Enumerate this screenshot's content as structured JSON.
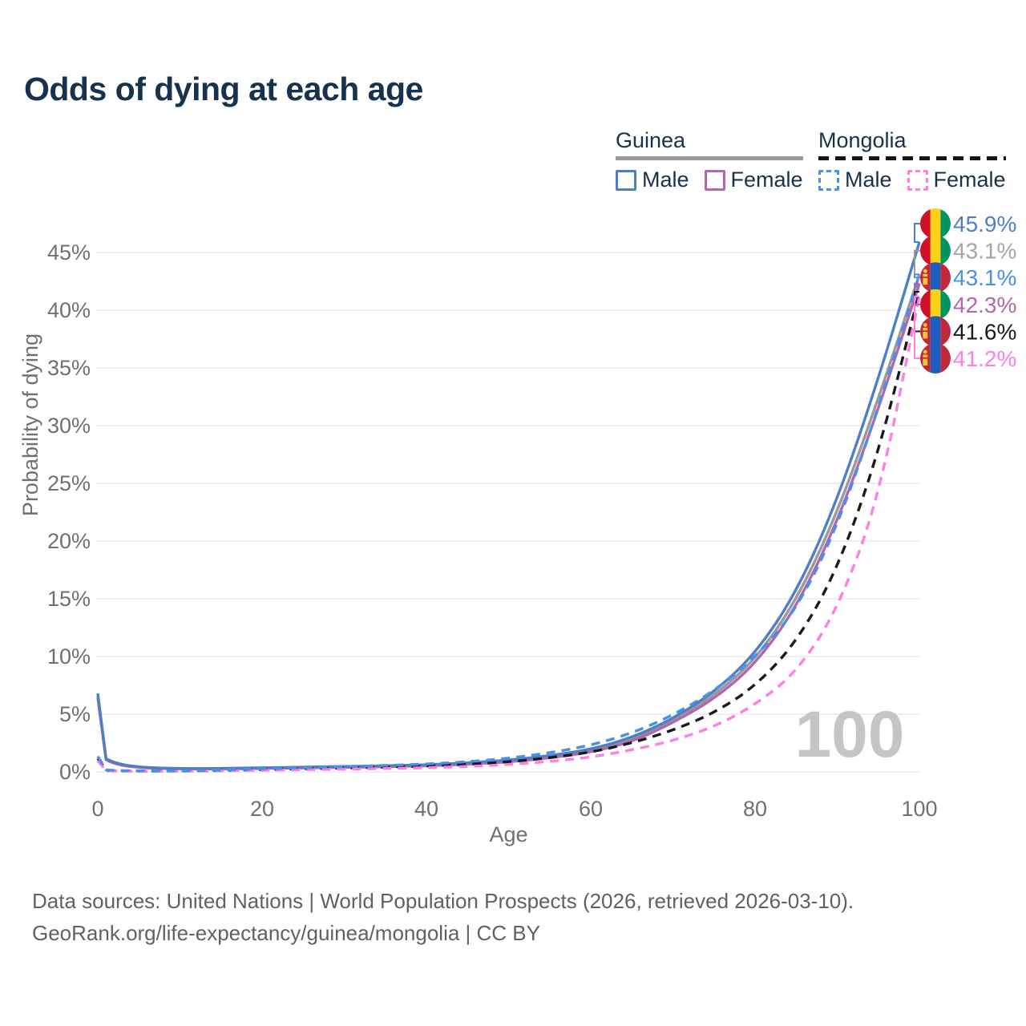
{
  "title": "Odds of dying at each age",
  "watermark": "100",
  "legend": {
    "groups": [
      {
        "name": "Guinea",
        "underline_style": "solid",
        "underline_color": "#9a9a9a",
        "items": [
          {
            "label": "Male",
            "color": "#4e7fc4"
          },
          {
            "label": "Female",
            "color": "#b565ae"
          }
        ]
      },
      {
        "name": "Mongolia",
        "underline_style": "dashed",
        "underline_color": "#141414",
        "items": [
          {
            "label": "Male",
            "color": "#4a8fe8"
          },
          {
            "label": "Female",
            "color": "#ff7ee3"
          }
        ]
      }
    ]
  },
  "colors": {
    "title_text": "#16324e",
    "axis_text": "#707070",
    "grid": "#eaeaea",
    "watermark": "#c5c5c5",
    "footer_text": "#616161",
    "guinea_flag": {
      "red": "#ce1126",
      "yellow": "#fcd116",
      "green": "#009460"
    },
    "mongolia_flag": {
      "red": "#c0283c",
      "blue": "#1c5dbe",
      "soyombo_yellow": "#f2c438"
    }
  },
  "chart_data": {
    "type": "line",
    "title": "Odds of dying at each age",
    "xlabel": "Age",
    "ylabel": "Probability of dying",
    "xlim": [
      0,
      100
    ],
    "ylim": [
      0,
      47.5
    ],
    "x_ticks": [
      0,
      20,
      40,
      60,
      80,
      100
    ],
    "y_ticks": [
      0,
      5,
      10,
      15,
      20,
      25,
      30,
      35,
      40,
      45
    ],
    "y_tick_suffix": "%",
    "grid": true,
    "legend_position": "top-right",
    "hovered_age_watermark": "100",
    "x": [
      0,
      1,
      2,
      5,
      10,
      15,
      20,
      25,
      30,
      35,
      40,
      45,
      50,
      55,
      60,
      65,
      70,
      75,
      80,
      85,
      90,
      95,
      100
    ],
    "series": [
      {
        "name": "Guinea Male",
        "country": "Guinea",
        "sex": "male",
        "color": "#4e7fc4",
        "line_style": "solid",
        "flag": "guinea",
        "end_label": "45.9%",
        "end_label_color": "#4e7fc4",
        "values": [
          6.8,
          1.15,
          0.75,
          0.4,
          0.28,
          0.3,
          0.36,
          0.42,
          0.47,
          0.53,
          0.62,
          0.78,
          1.02,
          1.4,
          1.95,
          2.95,
          4.6,
          6.9,
          10.2,
          15.5,
          23.5,
          34.0,
          45.9
        ]
      },
      {
        "name": "Guinea",
        "country": "Guinea",
        "sex": "both",
        "color": "#9a9a9a",
        "line_style": "solid",
        "flag": "guinea",
        "end_label": "43.1%",
        "end_label_color": "#a5a5a5",
        "values": [
          6.6,
          1.1,
          0.7,
          0.38,
          0.26,
          0.28,
          0.33,
          0.38,
          0.43,
          0.49,
          0.57,
          0.72,
          0.94,
          1.3,
          1.82,
          2.75,
          4.4,
          6.6,
          9.7,
          14.8,
          22.4,
          32.3,
          43.1
        ]
      },
      {
        "name": "Mongolia Male",
        "country": "Mongolia",
        "sex": "male",
        "color": "#4a8fe8",
        "line_style": "dashed",
        "flag": "mongolia",
        "end_label": "43.1%",
        "end_label_color": "#4a8fe8",
        "values": [
          1.35,
          0.18,
          0.12,
          0.09,
          0.08,
          0.16,
          0.27,
          0.36,
          0.46,
          0.56,
          0.68,
          0.88,
          1.18,
          1.65,
          2.3,
          3.35,
          4.9,
          7.0,
          9.9,
          14.0,
          21.2,
          31.5,
          43.1
        ]
      },
      {
        "name": "Guinea Female",
        "country": "Guinea",
        "sex": "female",
        "color": "#b565ae",
        "line_style": "solid",
        "flag": "guinea",
        "end_label": "42.3%",
        "end_label_color": "#b565ae",
        "values": [
          6.4,
          1.05,
          0.66,
          0.36,
          0.24,
          0.26,
          0.3,
          0.34,
          0.39,
          0.45,
          0.52,
          0.66,
          0.86,
          1.2,
          1.7,
          2.6,
          4.25,
          6.3,
          9.3,
          14.2,
          21.6,
          31.4,
          42.3
        ]
      },
      {
        "name": "Mongolia",
        "country": "Mongolia",
        "sex": "both",
        "color": "#1a1a1a",
        "line_style": "dashed",
        "flag": "mongolia",
        "end_label": "41.6%",
        "end_label_color": "#1a1a1a",
        "values": [
          1.15,
          0.14,
          0.09,
          0.07,
          0.07,
          0.12,
          0.2,
          0.27,
          0.34,
          0.41,
          0.5,
          0.65,
          0.87,
          1.22,
          1.7,
          2.5,
          3.6,
          5.1,
          7.4,
          11.2,
          17.5,
          27.5,
          41.6
        ]
      },
      {
        "name": "Mongolia Female",
        "country": "Mongolia",
        "sex": "female",
        "color": "#ff7ee3",
        "line_style": "dashed",
        "flag": "mongolia",
        "end_label": "41.2%",
        "end_label_color": "#ff7ee3",
        "values": [
          0.95,
          0.11,
          0.07,
          0.05,
          0.05,
          0.09,
          0.14,
          0.19,
          0.24,
          0.29,
          0.36,
          0.47,
          0.63,
          0.9,
          1.27,
          1.9,
          2.7,
          3.9,
          5.8,
          8.6,
          14.0,
          23.5,
          41.2
        ]
      }
    ]
  },
  "footer": {
    "line1": "Data sources: United Nations | World Population Prospects (2026, retrieved 2026-03-10).",
    "line2": "GeoRank.org/life-expectancy/guinea/mongolia | CC BY"
  }
}
